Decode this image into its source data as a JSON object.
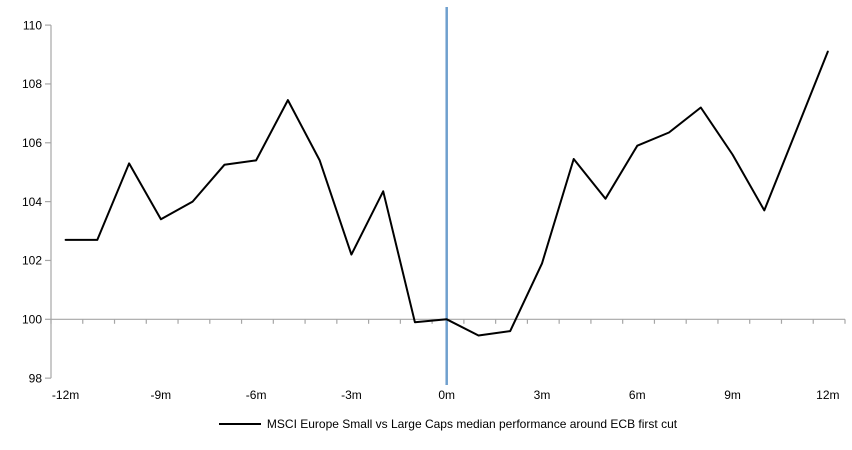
{
  "chart_data": {
    "type": "line",
    "title": "",
    "xlabel": "",
    "ylabel": "",
    "x": [
      -12,
      -11,
      -10,
      -9,
      -8,
      -7,
      -6,
      -5,
      -4,
      -3,
      -2,
      -1,
      0,
      1,
      2,
      3,
      4,
      5,
      6,
      7,
      8,
      9,
      10,
      11,
      12
    ],
    "series": [
      {
        "name": "MSCI Europe Small vs Large Caps median performance around ECB first cut",
        "color": "#000000",
        "values": [
          102.7,
          102.7,
          105.3,
          103.4,
          104.0,
          105.25,
          105.4,
          107.45,
          105.4,
          102.2,
          104.35,
          99.9,
          100.0,
          99.45,
          99.6,
          101.9,
          105.45,
          104.1,
          105.9,
          106.35,
          107.2,
          105.6,
          103.7,
          106.4,
          109.1
        ]
      }
    ],
    "x_tick_labels": [
      "-12m",
      "-9m",
      "-6m",
      "-3m",
      "0m",
      "3m",
      "6m",
      "9m",
      "12m"
    ],
    "y_ticks": [
      98,
      100,
      102,
      104,
      106,
      108,
      110
    ],
    "ylim": [
      98,
      110
    ],
    "baseline_value": 100,
    "event_line": {
      "x": 0,
      "color": "#6fa0ce"
    },
    "axis_color": "#a6a6a6",
    "text_color": "#000000",
    "grid": "single horizontal gridline at 100 with minor monthly ticks",
    "legend_position": "bottom-center"
  }
}
